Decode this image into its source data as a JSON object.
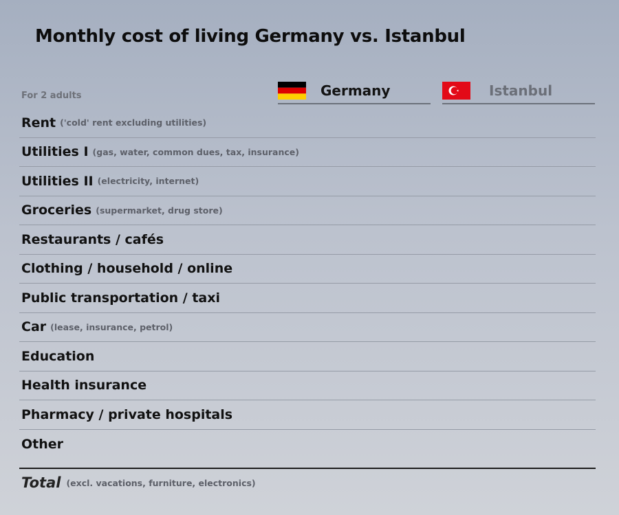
{
  "title": "Monthly cost of living Germany vs. Istanbul",
  "subtitle": "For 2 adults",
  "columns": [
    {
      "label": "Germany",
      "flag": "germany-flag-icon"
    },
    {
      "label": "Istanbul",
      "flag": "turkey-flag-icon"
    }
  ],
  "rows": [
    {
      "label": "Rent",
      "note": "('cold' rent excluding utilities)"
    },
    {
      "label": "Utilities I",
      "note": "(gas, water, common dues, tax, insurance)"
    },
    {
      "label": "Utilities II",
      "note": "(electricity, internet)"
    },
    {
      "label": "Groceries",
      "note": "(supermarket, drug store)"
    },
    {
      "label": "Restaurants / cafés",
      "note": ""
    },
    {
      "label": "Clothing / household / online",
      "note": ""
    },
    {
      "label": "Public transportation / taxi",
      "note": ""
    },
    {
      "label": "Car",
      "note": "(lease, insurance, petrol)"
    },
    {
      "label": "Education",
      "note": ""
    },
    {
      "label": "Health insurance",
      "note": ""
    },
    {
      "label": "Pharmacy / private hospitals",
      "note": ""
    },
    {
      "label": "Other",
      "note": ""
    }
  ],
  "total": {
    "label": "Total",
    "note": "(excl. vacations, furniture, electronics)"
  },
  "colors": {
    "germany_black": "#000000",
    "germany_red": "#dd0000",
    "germany_gold": "#ffce00",
    "turkey_red": "#e30a17"
  }
}
